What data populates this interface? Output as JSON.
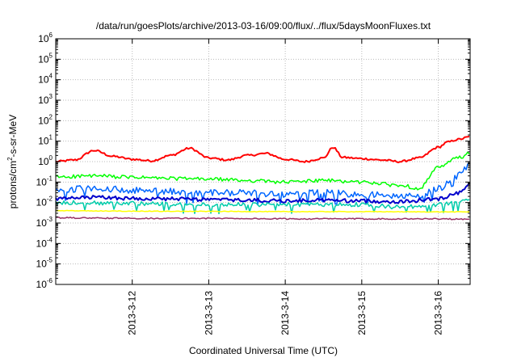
{
  "chart_data": {
    "type": "line",
    "title": "/data/run/goesPlots/archive/2013-03-16/09:00/flux/../flux/5daysMoonFluxes.txt",
    "xlabel": "Coordinated Universal Time (UTC)",
    "ylabel_parts": [
      "protons/cm",
      "2",
      "-s-sr-MeV"
    ],
    "yscale": "log",
    "ylim": [
      1e-06,
      1000000.0
    ],
    "ytick_exponents": [
      -6,
      -5,
      -4,
      -3,
      -2,
      -1,
      0,
      1,
      2,
      3,
      4,
      5,
      6
    ],
    "ytick_base": "10",
    "xlim": [
      "2013-03-11 00:00",
      "2013-03-16 10:00"
    ],
    "xticks": [
      "2013-3-12",
      "2013-3-13",
      "2013-3-14",
      "2013-3-15",
      "2013-3-16"
    ],
    "grid": true,
    "legend": "none",
    "series": [
      {
        "color": "#ff0000",
        "x": [
          "2013-03-11 00:00",
          "2013-03-11 06:00",
          "2013-03-11 12:00",
          "2013-03-11 18:00",
          "2013-03-12 00:00",
          "2013-03-12 06:00",
          "2013-03-12 12:00",
          "2013-03-12 18:00",
          "2013-03-13 00:00",
          "2013-03-13 06:00",
          "2013-03-13 12:00",
          "2013-03-13 18:00",
          "2013-03-14 00:00",
          "2013-03-14 06:00",
          "2013-03-14 12:00",
          "2013-03-14 15:00",
          "2013-03-14 18:00",
          "2013-03-15 00:00",
          "2013-03-15 06:00",
          "2013-03-15 12:00",
          "2013-03-15 18:00",
          "2013-03-16 00:00",
          "2013-03-16 03:00",
          "2013-03-16 06:00",
          "2013-03-16 10:00"
        ],
        "y": [
          1.0,
          1.2,
          3.5,
          1.8,
          1.3,
          1.1,
          2.0,
          4.5,
          1.5,
          1.2,
          2.0,
          2.5,
          1.3,
          1.0,
          1.5,
          5.0,
          1.6,
          1.4,
          1.2,
          1.0,
          1.5,
          5.0,
          9.0,
          12.0,
          16.0
        ]
      },
      {
        "color": "#00ff00",
        "x": [
          "2013-03-11 00:00",
          "2013-03-11 12:00",
          "2013-03-12 00:00",
          "2013-03-12 12:00",
          "2013-03-13 00:00",
          "2013-03-13 12:00",
          "2013-03-14 00:00",
          "2013-03-14 12:00",
          "2013-03-15 00:00",
          "2013-03-15 12:00",
          "2013-03-15 18:00",
          "2013-03-16 00:00",
          "2013-03-16 06:00",
          "2013-03-16 10:00"
        ],
        "y": [
          0.18,
          0.2,
          0.17,
          0.15,
          0.14,
          0.12,
          0.1,
          0.12,
          0.1,
          0.07,
          0.05,
          0.5,
          1.5,
          2.5
        ]
      },
      {
        "color": "#0066ff",
        "x": [
          "2013-03-11 00:00",
          "2013-03-11 12:00",
          "2013-03-12 00:00",
          "2013-03-12 12:00",
          "2013-03-13 00:00",
          "2013-03-13 12:00",
          "2013-03-14 00:00",
          "2013-03-14 12:00",
          "2013-03-15 00:00",
          "2013-03-15 12:00",
          "2013-03-15 18:00",
          "2013-03-16 00:00",
          "2013-03-16 06:00",
          "2013-03-16 10:00"
        ],
        "y": [
          0.04,
          0.05,
          0.04,
          0.035,
          0.03,
          0.03,
          0.025,
          0.03,
          0.025,
          0.02,
          0.02,
          0.05,
          0.2,
          0.6
        ]
      },
      {
        "color": "#0000cc",
        "x": [
          "2013-03-11 00:00",
          "2013-03-11 12:00",
          "2013-03-12 00:00",
          "2013-03-12 12:00",
          "2013-03-13 00:00",
          "2013-03-13 12:00",
          "2013-03-14 00:00",
          "2013-03-14 12:00",
          "2013-03-15 00:00",
          "2013-03-15 12:00",
          "2013-03-16 00:00",
          "2013-03-16 06:00",
          "2013-03-16 10:00"
        ],
        "y": [
          0.015,
          0.018,
          0.016,
          0.015,
          0.014,
          0.013,
          0.012,
          0.013,
          0.012,
          0.011,
          0.015,
          0.03,
          0.08
        ]
      },
      {
        "color": "#00ccaa",
        "x": [
          "2013-03-11 00:00",
          "2013-03-12 00:00",
          "2013-03-13 00:00",
          "2013-03-14 00:00",
          "2013-03-15 00:00",
          "2013-03-15 12:00",
          "2013-03-16 00:00",
          "2013-03-16 10:00"
        ],
        "y": [
          0.01,
          0.009,
          0.008,
          0.008,
          0.008,
          0.006,
          0.008,
          0.012
        ]
      },
      {
        "color": "#ffff00",
        "x": [
          "2013-03-11 00:00",
          "2013-03-12 00:00",
          "2013-03-13 00:00",
          "2013-03-14 00:00",
          "2013-03-15 00:00",
          "2013-03-16 00:00",
          "2013-03-16 10:00"
        ],
        "y": [
          0.004,
          0.0038,
          0.0037,
          0.0036,
          0.0036,
          0.0035,
          0.0035
        ]
      },
      {
        "color": "#993366",
        "x": [
          "2013-03-11 00:00",
          "2013-03-12 00:00",
          "2013-03-13 00:00",
          "2013-03-14 00:00",
          "2013-03-15 00:00",
          "2013-03-16 00:00",
          "2013-03-16 10:00"
        ],
        "y": [
          0.0018,
          0.0017,
          0.0017,
          0.0016,
          0.0016,
          0.0016,
          0.0015
        ]
      }
    ]
  }
}
